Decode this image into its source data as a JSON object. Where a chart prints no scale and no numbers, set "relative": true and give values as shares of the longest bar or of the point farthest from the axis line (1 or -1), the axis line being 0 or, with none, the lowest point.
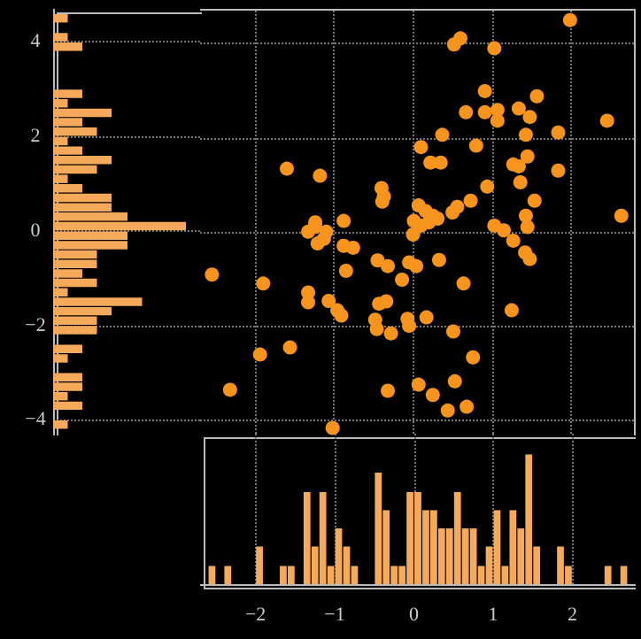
{
  "chart_data": [
    {
      "type": "scatter",
      "color": "#f7941d",
      "marker": "circle",
      "grid": true,
      "tick_labels": false,
      "xlim": [
        -2.7,
        2.8
      ],
      "xticks": [
        -2,
        -1,
        0,
        1,
        2
      ],
      "ylim": [
        -4.33,
        4.7
      ],
      "yticks": [
        -4,
        -2,
        0,
        2,
        4
      ],
      "x": [
        1.99,
        0.52,
        0.6,
        1.03,
        0.91,
        1.57,
        0.67,
        0.91,
        1.07,
        1.07,
        1.34,
        1.48,
        2.46,
        1.84,
        1.43,
        0.37,
        0.1,
        0.8,
        0.22,
        0.35,
        -1.6,
        -1.18,
        1.45,
        1.27,
        1.34,
        1.84,
        1.36,
        0.94,
        -0.4,
        -0.37,
        -0.39,
        1.54,
        0.73,
        0.07,
        0.16,
        0.25,
        0.5,
        0.56,
        1.43,
        2.64,
        -1.24,
        -0.88,
        0.01,
        -1.33,
        -1.24,
        -1.1,
        -1.13,
        -1.21,
        -0.88,
        -0.76,
        0.1,
        0.2,
        0.0,
        0.31,
        1.03,
        1.15,
        1.27,
        1.45,
        1.42,
        1.48,
        -2.55,
        -1.9,
        -1.33,
        -1.33,
        -1.07,
        -0.96,
        -0.91,
        -0.85,
        -0.45,
        -0.32,
        -0.14,
        -0.05,
        0.04,
        0.33,
        0.64,
        -0.43,
        -0.34,
        -0.48,
        -0.46,
        -0.28,
        -0.07,
        -0.05,
        0.17,
        1.25,
        0.51,
        0.76,
        -1.94,
        -1.56,
        -2.32,
        -0.32,
        0.07,
        0.25,
        0.53,
        0.44,
        0.68,
        -1.02
      ],
      "values": [
        4.5,
        3.98,
        4.11,
        3.9,
        2.99,
        2.88,
        2.54,
        2.54,
        2.59,
        2.36,
        2.62,
        2.44,
        2.36,
        2.11,
        2.06,
        2.06,
        1.8,
        1.83,
        1.47,
        1.47,
        1.34,
        1.19,
        1.6,
        1.43,
        1.39,
        1.3,
        1.05,
        0.96,
        0.93,
        0.75,
        0.64,
        0.66,
        0.66,
        0.56,
        0.44,
        0.34,
        0.41,
        0.53,
        0.34,
        0.34,
        0.2,
        0.23,
        0.23,
        0,
        0.11,
        0,
        -0.15,
        -0.25,
        -0.3,
        -0.34,
        0.13,
        0.2,
        -0.06,
        0.28,
        0.13,
        0.03,
        -0.19,
        0.1,
        -0.44,
        -0.58,
        -0.91,
        -1.1,
        -1.29,
        -1.5,
        -1.47,
        -1.67,
        -1.78,
        -0.83,
        -0.61,
        -0.73,
        -1.02,
        -0.65,
        -0.73,
        -0.6,
        -1.1,
        -1.53,
        -1.48,
        -1.87,
        -2.07,
        -2.16,
        -1.85,
        -2.0,
        -1.82,
        -1.67,
        -2.12,
        -2.67,
        -2.61,
        -2.46,
        -3.36,
        -3.38,
        -3.25,
        -3.47,
        -3.18,
        -3.8,
        -3.72,
        -4.17
      ]
    },
    {
      "type": "bar",
      "orientation": "horizontal",
      "relative": true,
      "color": "#f5a95a",
      "grid": true,
      "tick_labels": "y",
      "ylim": [
        -4.33,
        4.7
      ],
      "yticks": [
        -4,
        -2,
        0,
        2,
        4
      ],
      "x": [
        -4.1,
        -3.7,
        -3.5,
        -3.3,
        -3.1,
        -2.7,
        -2.5,
        -2.1,
        -1.9,
        -1.7,
        -1.5,
        -1.3,
        -1.1,
        -0.9,
        -0.7,
        -0.5,
        -0.3,
        -0.1,
        0.1,
        0.3,
        0.5,
        0.7,
        0.9,
        1.1,
        1.3,
        1.5,
        1.7,
        1.9,
        2.1,
        2.3,
        2.5,
        2.7,
        2.9,
        3.9,
        4.1,
        4.5
      ],
      "values": [
        0.11,
        0.22,
        0.11,
        0.22,
        0.22,
        0.11,
        0.22,
        0.33,
        0.33,
        0.44,
        0.67,
        0.11,
        0.33,
        0.22,
        0.33,
        0.33,
        0.56,
        0.56,
        1,
        0.56,
        0.44,
        0.44,
        0.22,
        0.11,
        0.33,
        0.44,
        0.22,
        0.11,
        0.33,
        0.22,
        0.44,
        0.11,
        0.22,
        0.22,
        0.11,
        0.11
      ]
    },
    {
      "type": "bar",
      "relative": true,
      "color": "#f5a95a",
      "grid": "x",
      "tick_labels": "x",
      "xlim": [
        -2.7,
        2.8
      ],
      "xticks": [
        -2,
        -1,
        0,
        1,
        2
      ],
      "x": [
        -2.55,
        -2.35,
        -1.95,
        -1.65,
        -1.55,
        -1.35,
        -1.25,
        -1.15,
        -1.05,
        -0.95,
        -0.85,
        -0.75,
        -0.45,
        -0.35,
        -0.25,
        -0.15,
        -0.05,
        0.05,
        0.15,
        0.25,
        0.35,
        0.45,
        0.55,
        0.65,
        0.75,
        0.85,
        0.95,
        1.05,
        1.15,
        1.25,
        1.35,
        1.45,
        1.55,
        1.85,
        1.95,
        2.45,
        2.65
      ],
      "values": [
        0.14,
        0.14,
        0.29,
        0.14,
        0.14,
        0.71,
        0.29,
        0.71,
        0.14,
        0.43,
        0.29,
        0.14,
        0.86,
        0.57,
        0.14,
        0.14,
        0.71,
        0.71,
        0.57,
        0.57,
        0.43,
        0.43,
        0.71,
        0.43,
        0.43,
        0.14,
        0.29,
        0.57,
        0.14,
        0.57,
        0.43,
        1,
        0.29,
        0.29,
        0.14,
        0.14,
        0.14
      ]
    }
  ]
}
